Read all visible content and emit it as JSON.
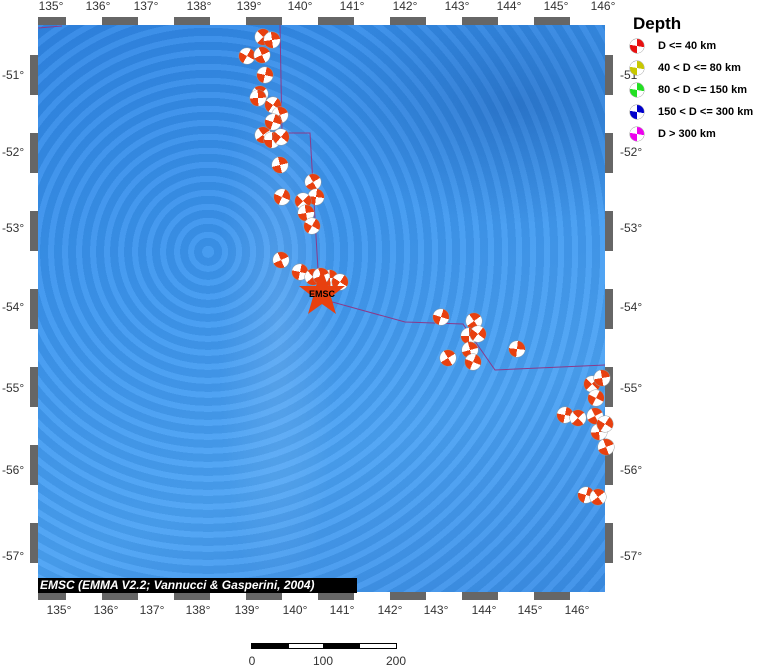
{
  "map": {
    "lon_ticks_top": [
      "135°",
      "136°",
      "137°",
      "138°",
      "139°",
      "140°",
      "141°",
      "142°",
      "143°",
      "144°",
      "145°",
      "146°"
    ],
    "lon_ticks_bottom": [
      "135°",
      "136°",
      "137°",
      "138°",
      "139°",
      "140°",
      "141°",
      "142°",
      "143°",
      "144°",
      "145°",
      "146°"
    ],
    "lat_ticks": [
      "-51°",
      "-52°",
      "-53°",
      "-54°",
      "-55°",
      "-56°",
      "-57°"
    ],
    "epicenter_label": "EMSC",
    "credit": "EMSC (EMMA V2.2; Vannucci & Gasperini, 2004)",
    "mechanism_color": "#e8400f",
    "plate_boundary_color": "#8a3a8a"
  },
  "legend": {
    "title": "Depth",
    "items": [
      {
        "label": "D <= 40 km",
        "color": "#e81010"
      },
      {
        "label": "40 < D <= 80 km",
        "color": "#c8c800"
      },
      {
        "label": "80 < D <= 150 km",
        "color": "#22e022"
      },
      {
        "label": "150 < D <= 300 km",
        "color": "#0000cc"
      },
      {
        "label": "D > 300 km",
        "color": "#ee00ee"
      }
    ]
  },
  "scale_bar": {
    "labels": [
      "0",
      "100",
      "200"
    ]
  }
}
